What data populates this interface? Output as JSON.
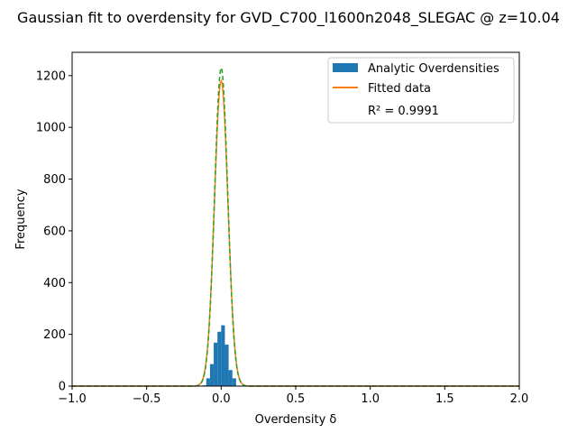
{
  "chart_data": {
    "type": "histogram",
    "title": "Gaussian fit to overdensity for GVD_C700_l1600n2048_SLEGAC @ z=10.04",
    "xlabel": "Overdensity δ",
    "ylabel": "Frequency",
    "xlim": [
      -1.0,
      2.0
    ],
    "ylim": [
      0,
      1290
    ],
    "x_ticks": [
      -1.0,
      -0.5,
      0.0,
      0.5,
      1.0,
      1.5,
      2.0
    ],
    "x_tick_labels": [
      "−1.0",
      "−0.5",
      "0.0",
      "0.5",
      "1.0",
      "1.5",
      "2.0"
    ],
    "y_ticks": [
      0,
      200,
      400,
      600,
      800,
      1000,
      1200
    ],
    "y_tick_labels": [
      "0",
      "200",
      "400",
      "600",
      "800",
      "1000",
      "1200"
    ],
    "histogram": {
      "name": "Analytic Overdensities",
      "color": "#1f77b4",
      "bin_edges": [
        -0.125,
        -0.1,
        -0.075,
        -0.05,
        -0.025,
        0.0,
        0.025,
        0.05,
        0.075,
        0.1
      ],
      "counts": [
        3,
        30,
        85,
        168,
        210,
        235,
        160,
        62,
        30
      ]
    },
    "fit": {
      "name": "Fitted data",
      "color": "#ff7f0e",
      "amplitude": 1180,
      "mean": 0.0,
      "sigma": 0.045
    },
    "fit_overlay": {
      "color": "#2ca02c",
      "amplitude": 1230,
      "mean": 0.0,
      "sigma": 0.044
    },
    "legend": {
      "position": "upper right",
      "annotation": "R² = 0.9991"
    }
  }
}
